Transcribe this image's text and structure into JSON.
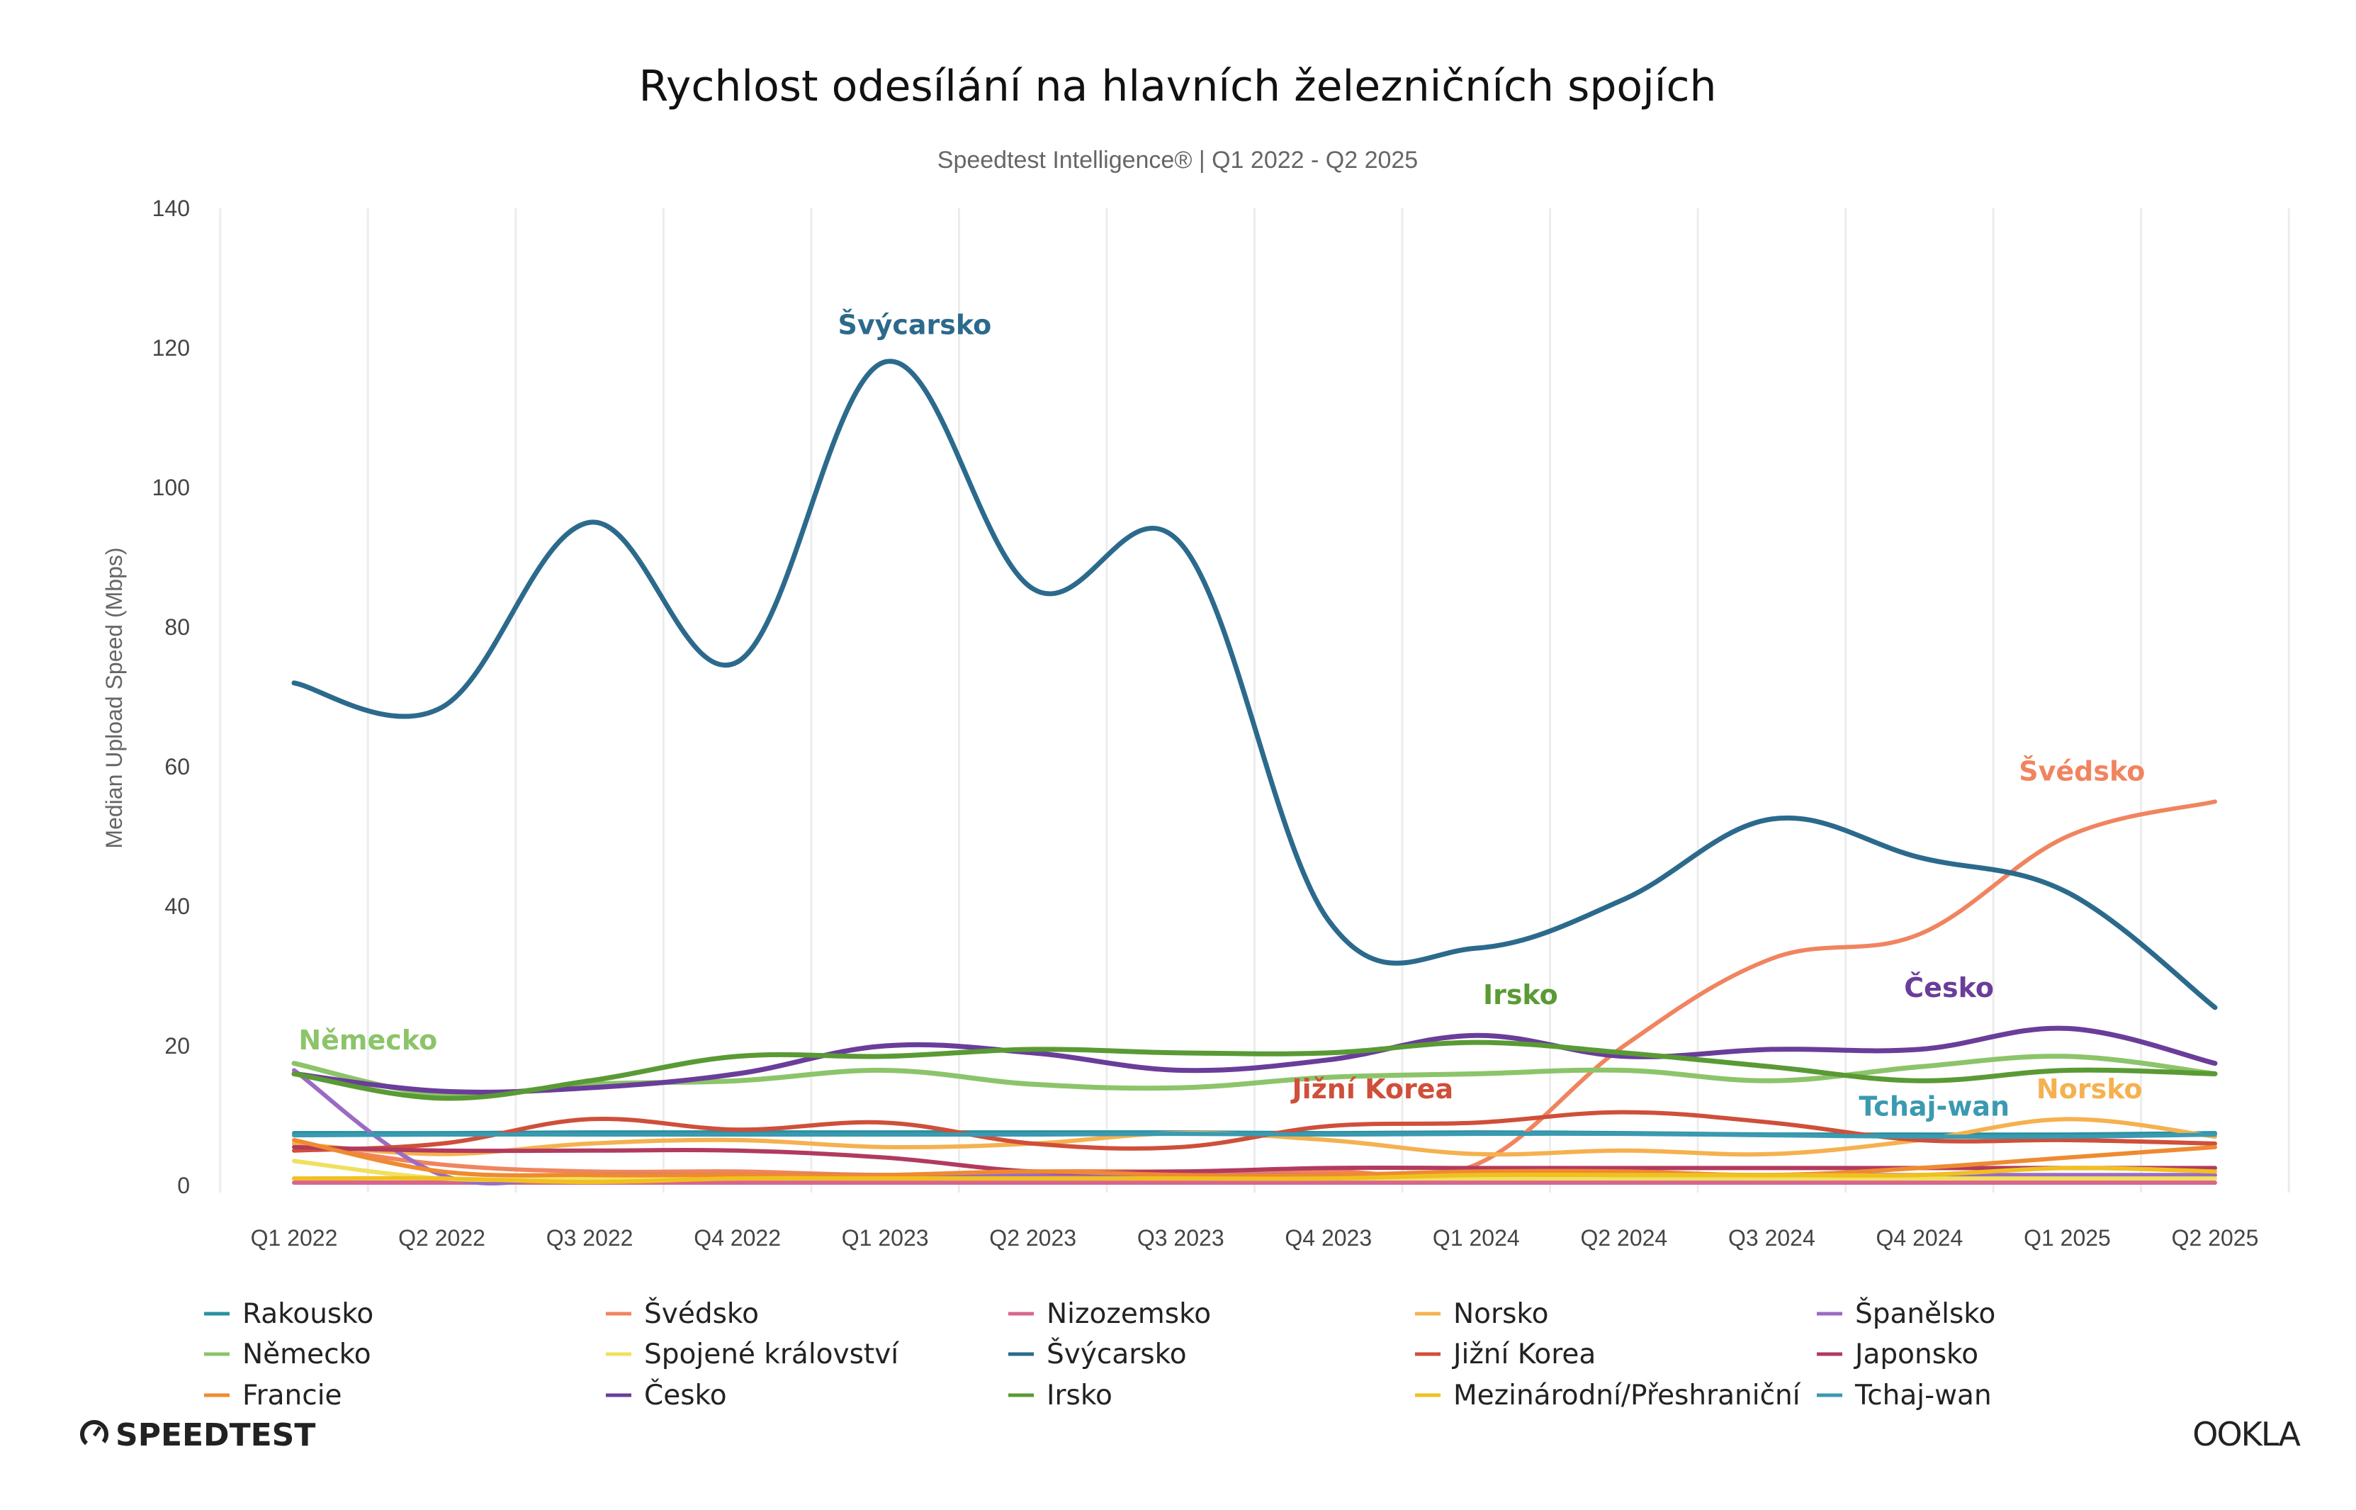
{
  "chart_data": {
    "type": "line",
    "title": "Rychlost odesílání na hlavních železničních spojích",
    "subtitle": "Speedtest Intelligence® | Q1 2022 - Q2 2025",
    "xlabel": "",
    "ylabel": "Median Upload Speed (Mbps)",
    "ylim": [
      0,
      140
    ],
    "yticks": [
      0,
      20,
      40,
      60,
      80,
      100,
      120,
      140
    ],
    "grid": "vertical",
    "legend_position": "bottom",
    "categories": [
      "Q1 2022",
      "Q2 2022",
      "Q3 2022",
      "Q4 2022",
      "Q1 2023",
      "Q2 2023",
      "Q3 2023",
      "Q4 2023",
      "Q1 2024",
      "Q2 2024",
      "Q3 2024",
      "Q4 2024",
      "Q1 2025",
      "Q2 2025"
    ],
    "series": [
      {
        "name": "Rakousko",
        "color": "#2a8fa0",
        "values": [
          7.5,
          7.5,
          7.6,
          7.6,
          7.6,
          7.6,
          7.6,
          7.5,
          7.6,
          7.5,
          7.3,
          7.3,
          7.3,
          7.5
        ]
      },
      {
        "name": "Švédsko",
        "color": "#f0845f",
        "values": [
          6,
          3,
          2,
          2,
          1.5,
          2,
          2,
          2,
          3,
          20,
          32.5,
          36,
          50,
          55
        ]
      },
      {
        "name": "Nizozemsko",
        "color": "#d9648f",
        "values": [
          0.4,
          0.4,
          0.4,
          0.4,
          0.4,
          0.4,
          0.4,
          0.4,
          0.4,
          0.4,
          0.4,
          0.4,
          0.4,
          0.4
        ]
      },
      {
        "name": "Norsko",
        "color": "#f5b14f",
        "values": [
          6,
          4.5,
          6,
          6.5,
          5.5,
          6,
          7.5,
          6.5,
          4.5,
          5,
          4.5,
          6.5,
          9.5,
          7
        ]
      },
      {
        "name": "Španělsko",
        "color": "#9b6bc4",
        "values": [
          16.5,
          1.5,
          1.5,
          1.5,
          1.5,
          1.5,
          1.5,
          1.5,
          1.5,
          1.5,
          1.5,
          1.5,
          1.5,
          1.5
        ]
      },
      {
        "name": "Německo",
        "color": "#8cc46a",
        "values": [
          17.5,
          13,
          14.5,
          15,
          16.5,
          14.5,
          14,
          15.5,
          16,
          16.5,
          15,
          17,
          18.5,
          16
        ]
      },
      {
        "name": "Spojené království",
        "color": "#f0e060",
        "values": [
          3.5,
          1,
          1,
          1,
          1,
          1,
          1,
          1,
          1,
          1,
          1,
          1,
          1,
          1
        ]
      },
      {
        "name": "Švýcarsko",
        "color": "#2b6a8c",
        "values": [
          72,
          68.5,
          95,
          75,
          118,
          85.5,
          92,
          38,
          34,
          41,
          52.5,
          47,
          42,
          25.5
        ]
      },
      {
        "name": "Jižní Korea",
        "color": "#cf4f3a",
        "values": [
          5,
          6,
          9.5,
          8,
          9,
          6,
          5.5,
          8.5,
          9,
          10.5,
          9,
          6.5,
          6.5,
          6
        ]
      },
      {
        "name": "Japonsko",
        "color": "#b23a5f",
        "values": [
          5.5,
          5,
          5,
          5,
          4,
          2,
          2,
          2.5,
          2.5,
          2.5,
          2.5,
          2.5,
          2.5,
          2.5
        ]
      },
      {
        "name": "Francie",
        "color": "#ef8a30",
        "values": [
          6.5,
          2,
          1.5,
          1.5,
          1.5,
          2,
          1.5,
          1.5,
          2,
          2,
          1.5,
          2.5,
          4,
          5.5
        ]
      },
      {
        "name": "Česko",
        "color": "#6a3d9a",
        "values": [
          16,
          13.5,
          14,
          16,
          20,
          19,
          16.5,
          18,
          21.5,
          18.5,
          19.5,
          19.5,
          22.5,
          17.5
        ]
      },
      {
        "name": "Irsko",
        "color": "#5a9a35",
        "values": [
          16,
          12.5,
          15,
          18.5,
          18.5,
          19.5,
          19,
          19,
          20.5,
          19,
          17,
          15,
          16.5,
          16
        ]
      },
      {
        "name": "Mezinárodní/Přeshraniční",
        "color": "#f0c020",
        "values": [
          1,
          1,
          0.5,
          1,
          1,
          1,
          1,
          1,
          1.5,
          1.5,
          1.5,
          1.5,
          2.5,
          2
        ]
      },
      {
        "name": "Tchaj-wan",
        "color": "#3a9ab0",
        "values": [
          7.2,
          7.3,
          7.3,
          7.3,
          7.3,
          7.3,
          7.4,
          7.3,
          7.4,
          7.4,
          7.2,
          7.0,
          7.0,
          7.3
        ]
      }
    ],
    "annotations": [
      {
        "text": "Švýcarsko",
        "series": "Švýcarsko",
        "x": "Q1 2023",
        "y": 122
      },
      {
        "text": "Švédsko",
        "series": "Švédsko",
        "x": "Q1 2025",
        "y": 58
      },
      {
        "text": "Česko",
        "series": "Česko",
        "x": "Q4 2024",
        "y": 27
      },
      {
        "text": "Irsko",
        "series": "Irsko",
        "x": "Q1 2024",
        "y": 26
      },
      {
        "text": "Německo",
        "series": "Německo",
        "x": "Q1 2022",
        "y": 19.5
      },
      {
        "text": "Jižní Korea",
        "series": "Jižní Korea",
        "x": "Q4 2023",
        "y": 12.5
      },
      {
        "text": "Tchaj-wan",
        "series": "Tchaj-wan",
        "x": "Q4 2024",
        "y": 10
      },
      {
        "text": "Norsko",
        "series": "Norsko",
        "x": "Q1 2025",
        "y": 12.5
      }
    ]
  },
  "branding": {
    "left_logo": "SPEEDTEST",
    "right_logo": "OOKLA"
  }
}
